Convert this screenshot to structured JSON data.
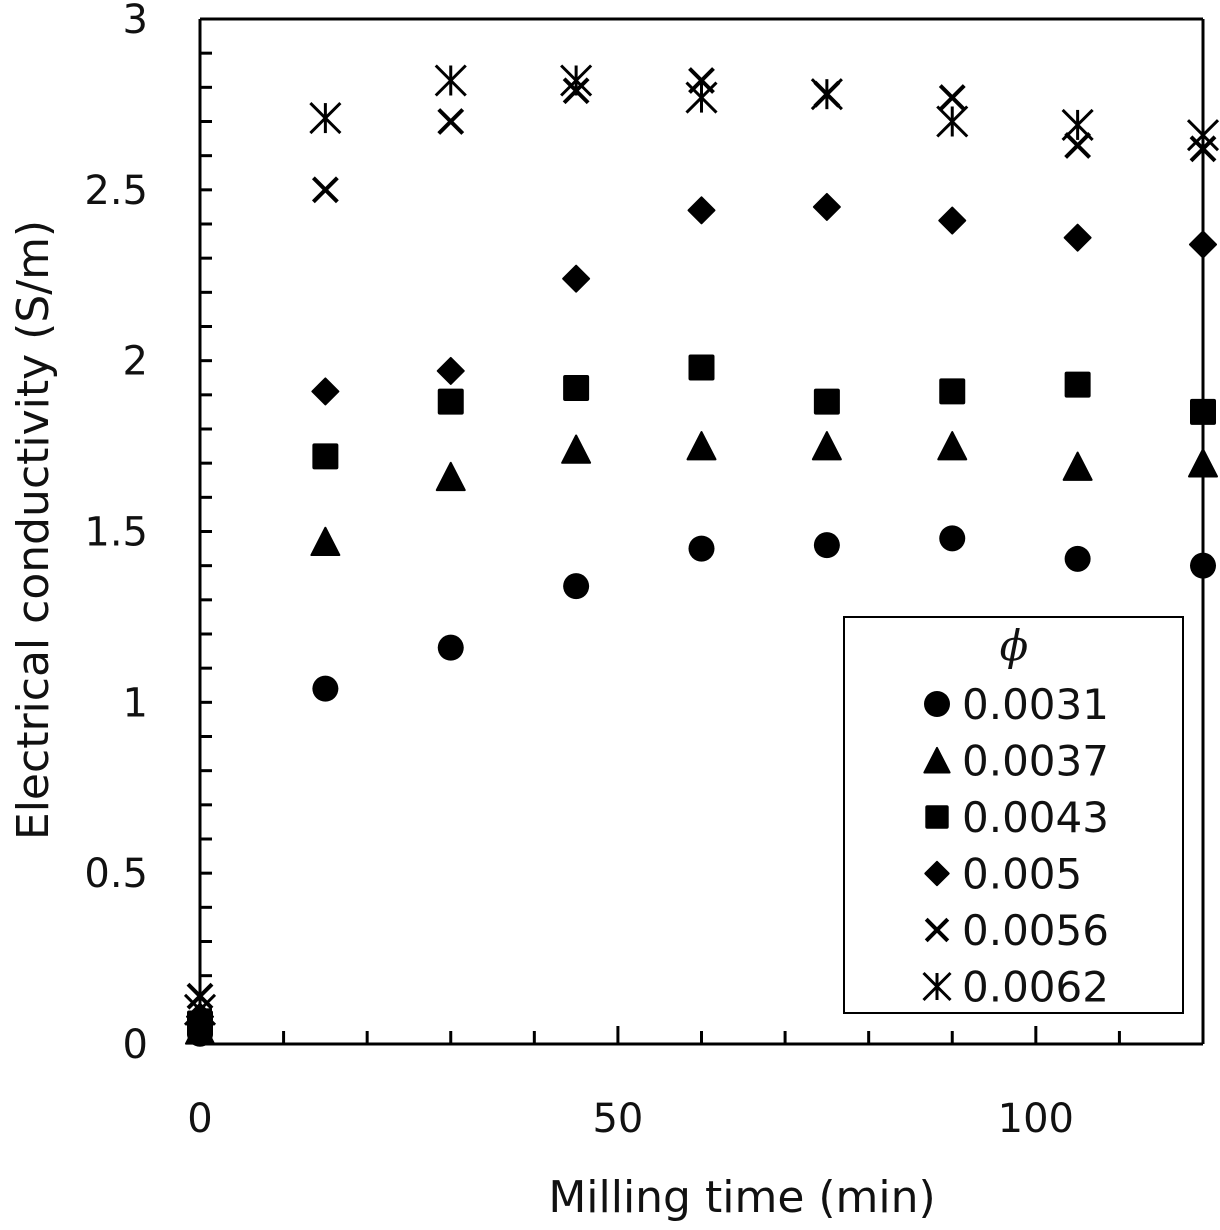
{
  "chart_data": {
    "type": "scatter",
    "title": "",
    "xlabel": "Milling time (min)",
    "ylabel": "Electrical conductivity (S/m)",
    "xlim": [
      0,
      120
    ],
    "ylim": [
      0,
      3
    ],
    "x_ticks": [
      0,
      50,
      100
    ],
    "x_tick_labels": [
      "0",
      "50",
      "100"
    ],
    "x_minor_step": 10,
    "y_ticks": [
      0,
      0.5,
      1,
      1.5,
      2,
      2.5,
      3
    ],
    "y_tick_labels": [
      "0",
      "0.5",
      "1",
      "1.5",
      "2",
      "2.5",
      "3"
    ],
    "y_minor_step": 0.1,
    "grid": false,
    "legend": {
      "title": "ϕ",
      "placement": "bottom-right"
    },
    "x": [
      0,
      15,
      30,
      45,
      60,
      75,
      90,
      105,
      120
    ],
    "series": [
      {
        "name": "0.0031",
        "marker": "circle",
        "values": [
          0.03,
          1.04,
          1.16,
          1.34,
          1.45,
          1.46,
          1.48,
          1.42,
          1.4
        ]
      },
      {
        "name": "0.0037",
        "marker": "triangle",
        "values": [
          0.04,
          1.47,
          1.66,
          1.74,
          1.75,
          1.75,
          1.75,
          1.69,
          1.7
        ]
      },
      {
        "name": "0.0043",
        "marker": "square",
        "values": [
          0.06,
          1.72,
          1.88,
          1.92,
          1.98,
          1.88,
          1.91,
          1.93,
          1.85
        ]
      },
      {
        "name": "0.005",
        "marker": "diamond",
        "values": [
          0.08,
          1.91,
          1.97,
          2.24,
          2.44,
          2.45,
          2.41,
          2.36,
          2.34
        ]
      },
      {
        "name": "0.0056",
        "marker": "x",
        "values": [
          0.14,
          2.5,
          2.7,
          2.79,
          2.82,
          2.78,
          2.77,
          2.63,
          2.62
        ]
      },
      {
        "name": "0.0062",
        "marker": "asterisk",
        "values": [
          0.1,
          2.71,
          2.82,
          2.82,
          2.77,
          2.78,
          2.7,
          2.69,
          2.66
        ]
      }
    ],
    "colors": {
      "marker": "#000000",
      "axis": "#000000"
    }
  }
}
